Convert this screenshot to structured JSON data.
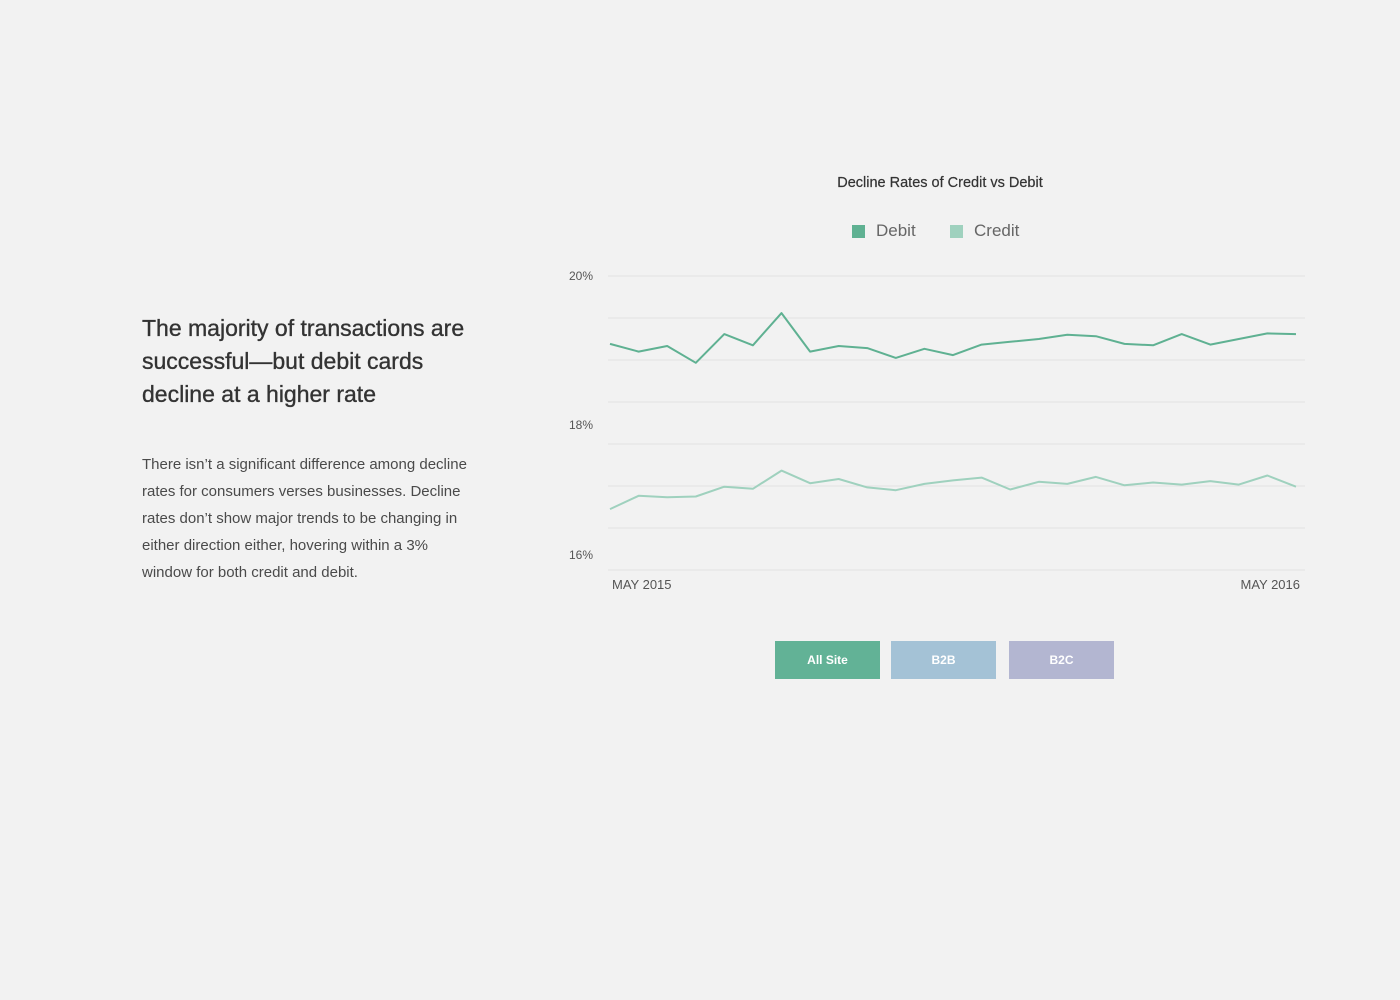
{
  "heading": "The majority of transactions are successful—but debit cards decline at a higher rate",
  "description": "There isn’t a significant difference among decline rates for consumers verses businesses. Decline rates don’t show major trends to be changing in either direction either, hovering within a 3% window for both credit and debit.",
  "filters": [
    {
      "label": "All Site",
      "color": "#62b296"
    },
    {
      "label": "B2B",
      "color": "#a4c2d6"
    },
    {
      "label": "B2C",
      "color": "#b3b6d1"
    }
  ],
  "chart_data": {
    "type": "line",
    "title": "Decline Rates of Credit vs Debit",
    "xlabel": "",
    "ylabel": "",
    "ylim": [
      15.9,
      20.1
    ],
    "y_ticks": [
      {
        "value": 20,
        "label": "20%"
      },
      {
        "value": 18,
        "label": "18%"
      },
      {
        "value": 16,
        "label": "16%"
      }
    ],
    "grid_values": [
      20.0,
      19.4,
      18.8,
      18.2,
      17.6,
      17.0,
      16.4,
      15.8
    ],
    "x_tick_labels": [
      "MAY 2015",
      "MAY 2016"
    ],
    "legend": "top-center",
    "grid": true,
    "series": [
      {
        "name": "Debit",
        "color": "#5fb192",
        "values": [
          19.03,
          18.92,
          19.0,
          18.76,
          19.17,
          19.01,
          19.47,
          18.92,
          19.0,
          18.97,
          18.83,
          18.96,
          18.87,
          19.02,
          19.06,
          19.1,
          19.16,
          19.14,
          19.03,
          19.01,
          19.17,
          19.02,
          19.1,
          19.18,
          19.17
        ]
      },
      {
        "name": "Credit",
        "color": "#9fd1be",
        "values": [
          16.67,
          16.86,
          16.84,
          16.85,
          16.99,
          16.96,
          17.22,
          17.04,
          17.1,
          16.98,
          16.94,
          17.03,
          17.08,
          17.12,
          16.95,
          17.06,
          17.03,
          17.13,
          17.01,
          17.05,
          17.02,
          17.07,
          17.02,
          17.15,
          16.99
        ]
      }
    ]
  }
}
